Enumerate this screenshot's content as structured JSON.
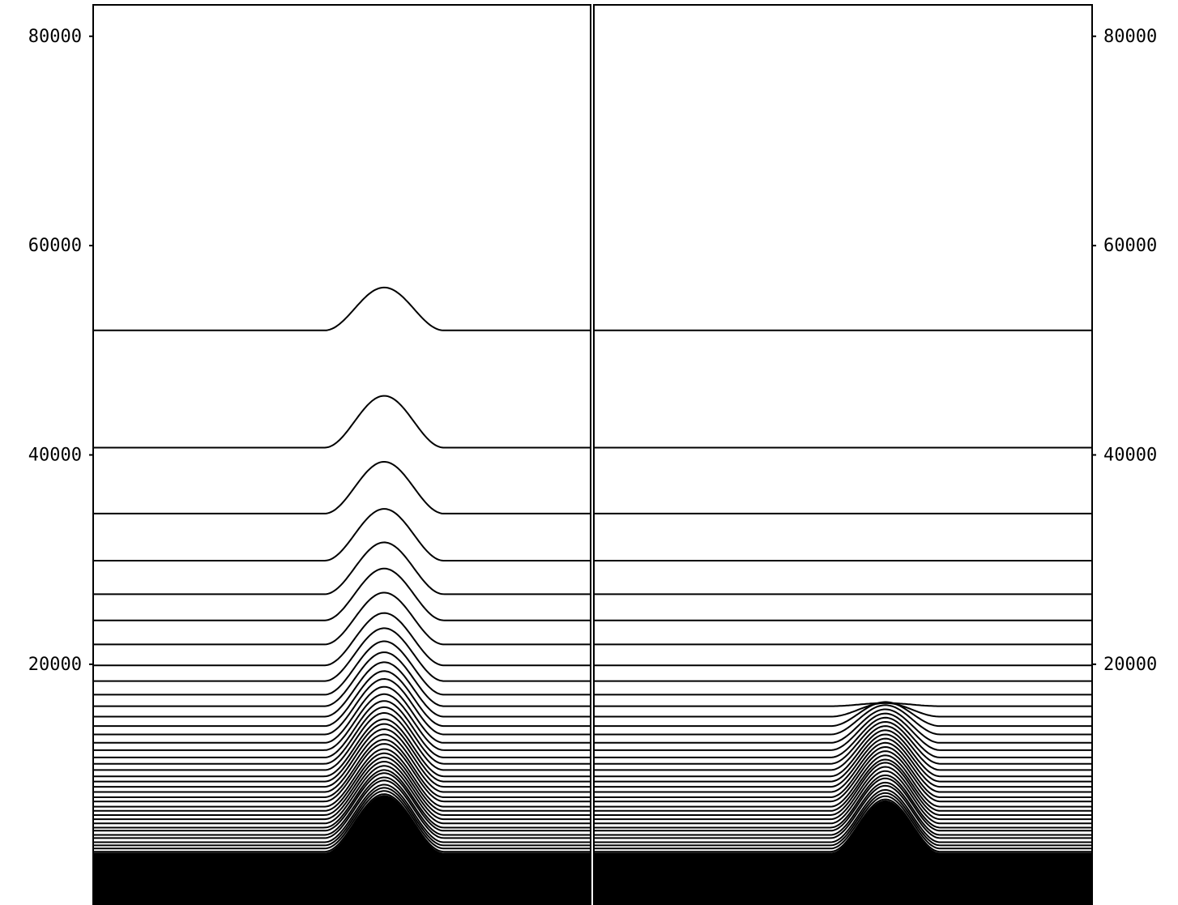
{
  "chart_data": [
    {
      "type": "line",
      "title": "",
      "xlabel": "",
      "ylabel": "",
      "ylim": [
        -3000,
        83000
      ],
      "yticks": [
        20000,
        40000,
        60000,
        80000
      ],
      "y_tick_labels": [
        "20000",
        "40000",
        "60000",
        "80000"
      ],
      "tick_side": "left",
      "grid": false,
      "legend": "none",
      "mountain_center": 0.585,
      "mountain_halfwidth": 0.12,
      "contour_levels": [
        51896,
        40696,
        34396,
        29896,
        26696,
        24196,
        21896,
        19896,
        18396,
        17096,
        15996,
        14996,
        14096,
        13296,
        12496,
        11796,
        11096,
        10496,
        9896,
        9296,
        8796,
        8296,
        7796,
        7296,
        6896,
        6396,
        5996,
        5596,
        5196,
        4796,
        4396,
        4096,
        3696,
        3396,
        2996,
        2696,
        2396,
        2096,
        1796,
        1496,
        1196,
        896,
        596
      ],
      "bump_heights": [
        4100,
        4950,
        4950,
        4950,
        4950,
        4950,
        4950,
        5000,
        5050,
        5100,
        5150,
        5200,
        5250,
        5300,
        5350,
        5350,
        5400,
        5400,
        5450,
        5450,
        5500,
        5500,
        5500,
        5500,
        5500,
        5500,
        5500,
        5500,
        5500,
        5500,
        5500,
        5500,
        5500,
        5500,
        5500,
        5500,
        5500,
        5500,
        5500,
        5500,
        5500,
        5500,
        5500
      ],
      "colors": {
        "line": "#000000",
        "fill": "#000000"
      }
    },
    {
      "type": "line",
      "title": "",
      "xlabel": "",
      "ylabel": "",
      "ylim": [
        -3000,
        83000
      ],
      "yticks": [
        20000,
        40000,
        60000,
        80000
      ],
      "y_tick_labels": [
        "20000",
        "40000",
        "60000",
        "80000"
      ],
      "tick_side": "right",
      "grid": false,
      "legend": "none",
      "mountain_center": 0.585,
      "mountain_halfwidth": 0.11,
      "contour_levels": [
        51896,
        40696,
        34396,
        29896,
        26696,
        24196,
        21896,
        19896,
        18396,
        17096,
        15996,
        14996,
        14096,
        13296,
        12496,
        11796,
        11096,
        10496,
        9896,
        9296,
        8796,
        8296,
        7796,
        7296,
        6896,
        6396,
        5996,
        5596,
        5196,
        4796,
        4396,
        4096,
        3696,
        3396,
        2996,
        2696,
        2396,
        2096,
        1796,
        1496,
        1196,
        896,
        596
      ],
      "bump_heights": [
        0,
        0,
        0,
        0,
        0,
        0,
        0,
        0,
        0,
        0,
        300,
        1300,
        2300,
        2800,
        3200,
        3500,
        3800,
        4000,
        4200,
        4400,
        4500,
        4600,
        4700,
        4800,
        4800,
        4900,
        4900,
        5000,
        5000,
        5000,
        5000,
        5000,
        5000,
        5000,
        5000,
        5000,
        5000,
        5000,
        5000,
        5000,
        5000,
        5000,
        5000
      ],
      "colors": {
        "line": "#000000",
        "fill": "#000000"
      }
    }
  ]
}
